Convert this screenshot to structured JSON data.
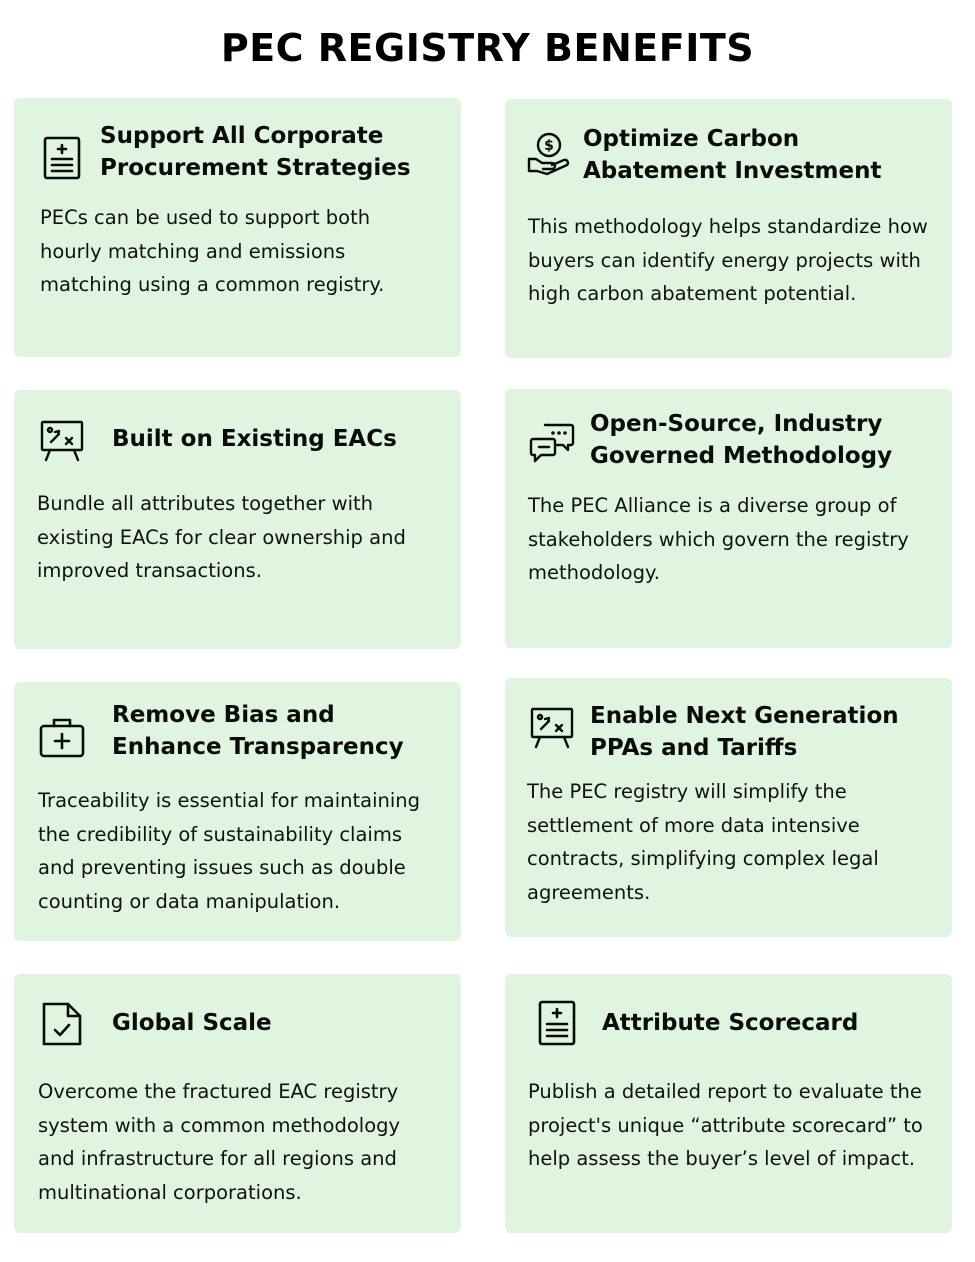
{
  "page": {
    "title": "PEC REGISTRY BENEFITS"
  },
  "colors": {
    "card_background": "#dff5df",
    "text": "#0b0b0b",
    "icon_stroke": "#0b0b0b"
  },
  "cards": [
    {
      "icon": "document-plus-icon",
      "title": "Support All Corporate\nProcurement Strategies",
      "body": "PECs can be used to support both hourly matching and emissions matching using a common registry."
    },
    {
      "icon": "hand-coin-icon",
      "title": "Optimize Carbon\nAbatement Investment",
      "body": "This methodology helps standardize how buyers can identify energy projects with high carbon abatement potential."
    },
    {
      "icon": "strategy-board-icon",
      "title": "Built on Existing EACs",
      "body": "Bundle all attributes together with existing EACs for clear ownership and improved transactions."
    },
    {
      "icon": "chat-bubbles-icon",
      "title": "Open-Source, Industry\nGoverned Methodology",
      "body": "The PEC Alliance is a diverse group of stakeholders which govern the registry methodology."
    },
    {
      "icon": "medical-kit-icon",
      "title": "Remove Bias and\nEnhance Transparency",
      "body": "Traceability is essential for maintaining the credibility of sustainability claims and preventing issues such as double counting or data manipulation."
    },
    {
      "icon": "strategy-board-icon",
      "title": "Enable Next Generation\nPPAs and Tariffs",
      "body": "The PEC registry will simplify the settlement of more data intensive contracts, simplifying complex legal agreements."
    },
    {
      "icon": "document-check-icon",
      "title": "Global Scale",
      "body": "Overcome the fractured EAC registry system with a common methodology and infrastructure for all regions and multinational corporations."
    },
    {
      "icon": "document-plus-icon",
      "title": "Attribute Scorecard",
      "body": "Publish a detailed report to evaluate the project's unique “attribute scorecard” to help assess the buyer’s level of impact."
    }
  ]
}
